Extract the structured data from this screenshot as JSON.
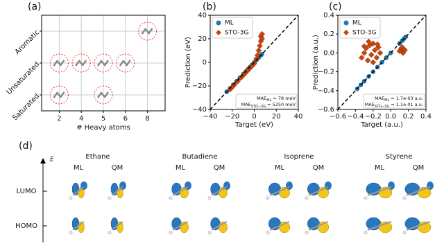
{
  "chart_data": [
    {
      "type": "category_grid",
      "panel": "(a)",
      "xlabel": "# Heavy atoms",
      "x_categories": [
        2,
        4,
        5,
        6,
        8
      ],
      "y_categories": [
        "Saturated",
        "Unsaturated",
        "Aromatic"
      ],
      "points": [
        {
          "x": 2,
          "y": "Saturated"
        },
        {
          "x": 5,
          "y": "Saturated"
        },
        {
          "x": 2,
          "y": "Unsaturated"
        },
        {
          "x": 4,
          "y": "Unsaturated"
        },
        {
          "x": 5,
          "y": "Unsaturated"
        },
        {
          "x": 6,
          "y": "Unsaturated"
        },
        {
          "x": 8,
          "y": "Aromatic"
        }
      ],
      "grid": true
    },
    {
      "type": "scatter",
      "panel": "(b)",
      "xlabel": "Target (eV)",
      "ylabel": "Prediction (eV)",
      "xlim": [
        -40,
        40
      ],
      "ylim": [
        -40,
        40
      ],
      "xticks": [
        {
          "value": -40,
          "label": "−40"
        },
        {
          "value": -20,
          "label": "−20"
        },
        0,
        20,
        40
      ],
      "yticks": [
        {
          "value": -40,
          "label": "−40"
        },
        {
          "value": -20,
          "label": "−20"
        },
        0,
        20,
        40
      ],
      "legend": "upper left",
      "series": [
        {
          "name": "ML",
          "color": "#1f77b4",
          "marker": "circle",
          "x": [
            -25,
            -22,
            -19,
            -16,
            -13,
            -10,
            -8,
            -6,
            -4,
            -2,
            0,
            2,
            4,
            6,
            7
          ],
          "values": [
            -25,
            -22,
            -19,
            -16,
            -13,
            -10,
            -8,
            -6,
            -4,
            -2,
            0,
            2,
            4,
            6,
            7
          ]
        },
        {
          "name": "STO-3G",
          "color": "#c8460e",
          "marker": "diamond",
          "x": [
            -22,
            -20,
            -18,
            -15,
            -12,
            -10,
            -8,
            -6,
            -4,
            -2,
            0,
            2,
            3,
            4,
            5,
            6,
            6,
            7,
            7
          ],
          "values": [
            -23,
            -21,
            -19,
            -16,
            -13,
            -11,
            -9,
            -7,
            -5,
            -3,
            -1,
            3,
            6,
            10,
            14,
            18,
            22,
            20,
            24
          ]
        }
      ],
      "annotations": [
        {
          "text": "MAE",
          "sub": "ML",
          "suffix": "= 78 meV"
        },
        {
          "text": "MAE",
          "sub": "STO−3G",
          "suffix": "= 5250 meV"
        }
      ]
    },
    {
      "type": "scatter",
      "panel": "(c)",
      "xlabel": "Target (a.u.)",
      "ylabel": "Prediction (a.u.)",
      "xlim": [
        -0.6,
        0.4
      ],
      "ylim": [
        -0.6,
        0.4
      ],
      "xticks": [
        {
          "value": -0.6,
          "label": "−0.6"
        },
        {
          "value": -0.4,
          "label": "−0.4"
        },
        {
          "value": -0.2,
          "label": "−0.2"
        },
        {
          "value": 0,
          "label": "0.0"
        },
        0.2,
        0.4
      ],
      "yticks": [
        {
          "value": -0.6,
          "label": "−0.6"
        },
        {
          "value": -0.4,
          "label": "−0.4"
        },
        {
          "value": -0.2,
          "label": "−0.2"
        },
        {
          "value": 0,
          "label": "0.0"
        },
        0.2,
        0.4
      ],
      "legend": "upper left",
      "series": [
        {
          "name": "ML",
          "color": "#1f77b4",
          "marker": "circle",
          "x": [
            -0.38,
            -0.34,
            -0.3,
            -0.25,
            -0.2,
            -0.15,
            -0.1,
            -0.05,
            0,
            0.1,
            0.13,
            0.15,
            0.17
          ],
          "values": [
            -0.38,
            -0.34,
            -0.3,
            -0.25,
            -0.2,
            -0.15,
            -0.1,
            -0.05,
            0,
            0.1,
            0.13,
            0.15,
            0.17
          ]
        },
        {
          "name": "STO-3G",
          "color": "#c8460e",
          "marker": "diamond",
          "x": [
            -0.33,
            -0.3,
            -0.28,
            -0.26,
            -0.24,
            -0.22,
            -0.2,
            -0.18,
            -0.16,
            -0.14,
            -0.12,
            -0.25,
            -0.2,
            -0.3,
            -0.15,
            0.1,
            0.12,
            0.14,
            0.15,
            0.16,
            0.13
          ],
          "values": [
            -0.05,
            0,
            0.05,
            -0.08,
            0.08,
            -0.02,
            0.1,
            0.03,
            -0.05,
            0.06,
            0,
            0.12,
            -0.1,
            0.07,
            0.09,
            0.02,
            0.05,
            0,
            0.04,
            0.03,
            0.06
          ]
        }
      ],
      "annotations": [
        {
          "text": "MAE",
          "sub": "ML",
          "suffix": "= 1.7e-03 a.u."
        },
        {
          "text": "MAE",
          "sub": "STO−3G",
          "suffix": "= 1.1e-01 a.u."
        }
      ]
    }
  ],
  "diagram": {
    "panel": "(d)",
    "axis_label": "E",
    "levels": [
      "LUMO",
      "HOMO"
    ],
    "molecules": [
      {
        "name": "Ethane",
        "methods": [
          "ML",
          "QM"
        ]
      },
      {
        "name": "Butadiene",
        "methods": [
          "ML",
          "QM"
        ]
      },
      {
        "name": "Isoprene",
        "methods": [
          "ML",
          "QM"
        ]
      },
      {
        "name": "Styrene",
        "methods": [
          "ML",
          "QM"
        ]
      }
    ]
  }
}
